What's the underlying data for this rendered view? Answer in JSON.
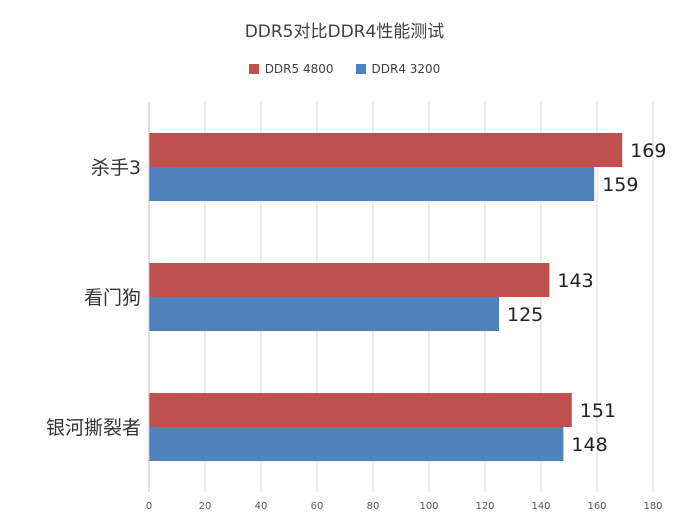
{
  "chart_data": {
    "type": "bar",
    "orientation": "horizontal",
    "title": "DDR5对比DDR4性能测试",
    "categories": [
      "杀手3",
      "看门狗",
      "银河撕裂者"
    ],
    "series": [
      {
        "name": "DDR5 4800",
        "color": "#c0504d",
        "values": [
          169,
          143,
          151
        ]
      },
      {
        "name": "DDR4 3200",
        "color": "#4f81bd",
        "values": [
          159,
          125,
          148
        ]
      }
    ],
    "xlim": [
      0,
      180
    ],
    "xticks": [
      "0",
      "20",
      "40",
      "60",
      "80",
      "100",
      "120",
      "140",
      "160",
      "180"
    ],
    "grid": true,
    "legend_position": "top"
  }
}
